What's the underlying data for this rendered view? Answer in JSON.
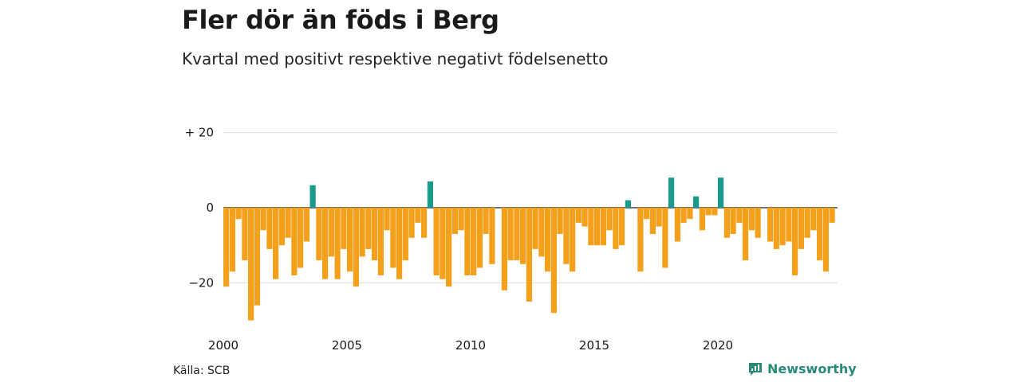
{
  "header": {
    "title": "Fler dör än föds i Berg",
    "subtitle": "Kvartal med positivt respektive negativt födelsenetto"
  },
  "footer": {
    "source": "Källa: SCB",
    "brand": "Newsworthy"
  },
  "colors": {
    "positive": "#1a9a8a",
    "negative": "#f5a01a",
    "grid": "#dddddd",
    "brand": "#2a8a7a"
  },
  "chart_data": {
    "type": "bar",
    "title": "Fler dör än föds i Berg",
    "subtitle": "Kvartal med positivt respektive negativt födelsenetto",
    "xlabel": "",
    "ylabel": "",
    "ylim": [
      -30,
      20
    ],
    "xlim": [
      2000,
      2025
    ],
    "y_ticks": [
      20,
      0,
      -20
    ],
    "y_tick_labels": [
      "+ 20",
      "0",
      "−20"
    ],
    "x_ticks": [
      2000,
      2005,
      2010,
      2015,
      2020
    ],
    "x_tick_labels": [
      "2000",
      "2005",
      "2010",
      "2015",
      "2020"
    ],
    "grid": true,
    "first_quarter": "2000 Q1",
    "values": [
      -21,
      -17,
      -3,
      -14,
      -30,
      -26,
      -6,
      -11,
      -19,
      -10,
      -8,
      -18,
      -16,
      -9,
      6,
      -14,
      -19,
      -13,
      -19,
      -11,
      -17,
      -21,
      -13,
      -11,
      -14,
      -18,
      -6,
      -16,
      -19,
      -14,
      -8,
      -4,
      -8,
      7,
      -18,
      -19,
      -21,
      -7,
      -6,
      -18,
      -18,
      -16,
      -7,
      -15,
      0,
      -22,
      -14,
      -14,
      -15,
      -25,
      -11,
      -13,
      -17,
      -28,
      -7,
      -15,
      -17,
      -4,
      -5,
      -10,
      -10,
      -10,
      -6,
      -11,
      -10,
      2,
      0,
      -17,
      -3,
      -7,
      -5,
      -16,
      8,
      -9,
      -4,
      -3,
      3,
      -6,
      -2,
      -2,
      8,
      -8,
      -7,
      -4,
      -14,
      -6,
      -8,
      0,
      -9,
      -11,
      -10,
      -9,
      -18,
      -11,
      -8,
      -6,
      -14,
      -17,
      -4
    ]
  }
}
